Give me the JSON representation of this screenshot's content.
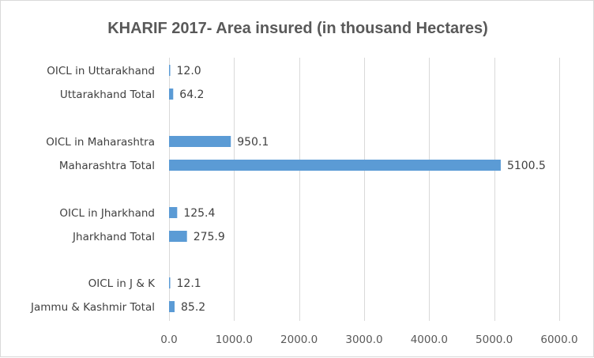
{
  "chart_data": {
    "type": "bar",
    "orientation": "horizontal",
    "title": "KHARIF 2017- Area insured (in thousand  Hectares)",
    "categories": [
      "OICL in Uttarakhand",
      "Uttarakhand Total",
      "OICL in Maharashtra",
      "Maharashtra Total",
      "OICL in Jharkhand",
      "Jharkhand Total",
      "OICL in J & K",
      "Jammu & Kashmir Total"
    ],
    "values": [
      12.0,
      64.2,
      950.1,
      5100.5,
      125.4,
      275.9,
      12.1,
      85.2
    ],
    "value_labels": [
      "12.0",
      "64.2",
      "950.1",
      "5100.5",
      "125.4",
      "275.9",
      "12.1",
      "85.2"
    ],
    "groups": [
      [
        "OICL in Uttarakhand",
        "Uttarakhand Total"
      ],
      [
        "OICL in Maharashtra",
        "Maharashtra Total"
      ],
      [
        "OICL in Jharkhand",
        "Jharkhand Total"
      ],
      [
        "OICL in J & K",
        "Jammu & Kashmir Total"
      ]
    ],
    "xlim": [
      0,
      6000
    ],
    "x_ticks": [
      0,
      1000,
      2000,
      3000,
      4000,
      5000,
      6000
    ],
    "x_tick_labels": [
      "0.0",
      "1000.0",
      "2000.0",
      "3000.0",
      "4000.0",
      "5000.0",
      "6000.0"
    ],
    "xlabel": "",
    "ylabel": "",
    "grid": "vertical",
    "legend": "none",
    "bar_color": "#5b9bd5"
  }
}
